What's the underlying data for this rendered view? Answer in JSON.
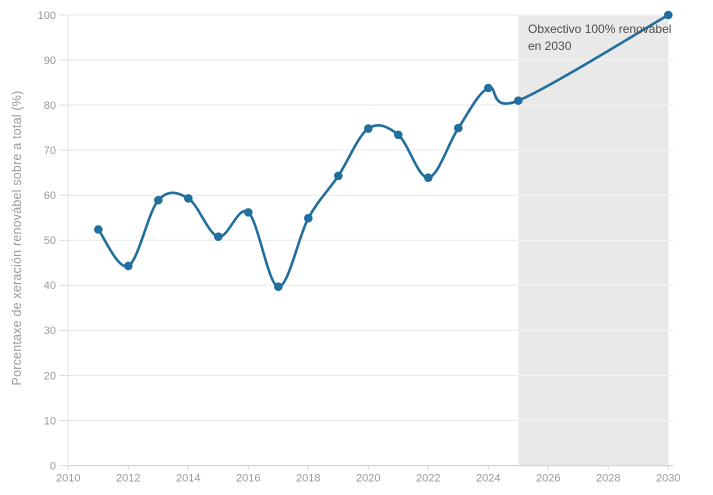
{
  "chart_data": {
    "type": "line",
    "title": "",
    "xlabel": "",
    "ylabel": "Porcentaxe de xeración renovábel sobre a total (%)",
    "series_name": "Porcentaxe de xeración renovábel sobre a total",
    "x": [
      2011,
      2012,
      2013,
      2014,
      2015,
      2016,
      2017,
      2018,
      2019,
      2020,
      2021,
      2022,
      2023,
      2024,
      2025,
      2030
    ],
    "values": [
      52.4,
      44.3,
      58.9,
      59.3,
      50.8,
      56.2,
      39.7,
      54.9,
      64.3,
      74.8,
      73.4,
      63.9,
      74.9,
      83.8,
      81,
      100
    ],
    "xticks": [
      2010,
      2012,
      2014,
      2016,
      2018,
      2020,
      2022,
      2024,
      2026,
      2028,
      2030
    ],
    "yticks": [
      0,
      10,
      20,
      30,
      40,
      50,
      60,
      70,
      80,
      90,
      100
    ],
    "xlim": [
      2010,
      2030.2
    ],
    "ylim": [
      0,
      100
    ],
    "grid": "horizontal",
    "legend": "none",
    "marker": "circle",
    "shaded_region": {
      "x_start": 2025,
      "x_end": 2030
    },
    "annotation": {
      "line1": "Obxectivo 100% renovábel",
      "line2": "en 2030"
    }
  },
  "colors": {
    "line": "#226e9c",
    "marker": "#226e9c",
    "shade": "#e9e9e9",
    "grid": "#e9e9e9",
    "grid_on_shade": "#f5f5f5",
    "axis_line": "#d4d4d4",
    "side_axis_line": "#e3e3e3",
    "tick_mark": "#dcdcdc",
    "tick_label": "#9a9a9a",
    "annotation_text": "#4d4d4d",
    "background": "#ffffff"
  }
}
